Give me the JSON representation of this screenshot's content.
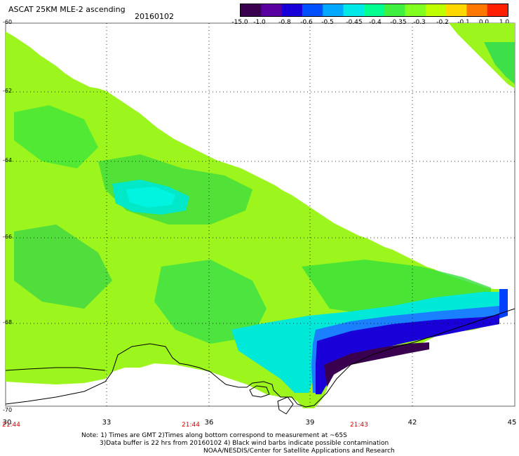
{
  "header": {
    "title": "ASCAT 25KM MLE-2 ascending",
    "date": "20160102"
  },
  "colorbar": {
    "labels": [
      "-15.0",
      "-1.0",
      "-0.8",
      "-0.6",
      "-0.5",
      "-0.45",
      "-0.4",
      "-0.35",
      "-0.3",
      "-0.2",
      "-0.1",
      "0.0",
      "1.0"
    ],
    "colors": [
      "#3a0050",
      "#5a00a0",
      "#1a00d8",
      "#0050ff",
      "#00a8ff",
      "#00e8e8",
      "#00ff90",
      "#40f040",
      "#80ff20",
      "#c0ff00",
      "#ffd800",
      "#ff7800",
      "#ff2000"
    ]
  },
  "axes": {
    "lat_labels": [
      "-60",
      "-62",
      "-64",
      "-66",
      "-68",
      "-70"
    ],
    "lon_labels": [
      "30",
      "33",
      "36",
      "39",
      "42",
      "45"
    ],
    "time_labels": [
      "21:44",
      "21:44",
      "21:43"
    ]
  },
  "notes": {
    "line1": "Note: 1) Times are GMT 2)Times along bottom correspond to measurement at ~65S",
    "line2": "3)Data buffer is 22 hrs from 20160102 4) Black wind barbs indicate possible contamination",
    "line3": "NOAA/NESDIS/Center for Satellite Applications and Research"
  }
}
